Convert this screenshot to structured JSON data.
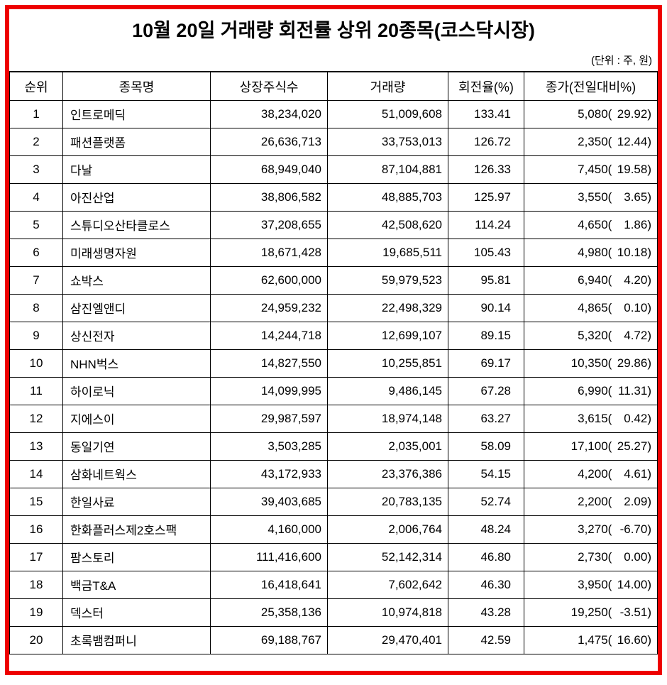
{
  "frame_color": "#ee0000",
  "chart_data": {
    "type": "table",
    "title": "10월 20일 거래량 회전률 상위 20종목(코스닥시장)",
    "unit_note": "(단위 : 주, 원)",
    "columns": [
      "순위",
      "종목명",
      "상장주식수",
      "거래량",
      "회전율(%)",
      "종가(전일대비%)"
    ],
    "rows": [
      {
        "rank": "1",
        "name": "인트로메딕",
        "shares": "38,234,020",
        "volume": "51,009,608",
        "turnover": "133.41",
        "close": "5,080",
        "change_pct": "29.92"
      },
      {
        "rank": "2",
        "name": "패션플랫폼",
        "shares": "26,636,713",
        "volume": "33,753,013",
        "turnover": "126.72",
        "close": "2,350",
        "change_pct": "12.44"
      },
      {
        "rank": "3",
        "name": "다날",
        "shares": "68,949,040",
        "volume": "87,104,881",
        "turnover": "126.33",
        "close": "7,450",
        "change_pct": "19.58"
      },
      {
        "rank": "4",
        "name": "아진산업",
        "shares": "38,806,582",
        "volume": "48,885,703",
        "turnover": "125.97",
        "close": "3,550",
        "change_pct": "3.65"
      },
      {
        "rank": "5",
        "name": "스튜디오산타클로스",
        "shares": "37,208,655",
        "volume": "42,508,620",
        "turnover": "114.24",
        "close": "4,650",
        "change_pct": "1.86"
      },
      {
        "rank": "6",
        "name": "미래생명자원",
        "shares": "18,671,428",
        "volume": "19,685,511",
        "turnover": "105.43",
        "close": "4,980",
        "change_pct": "10.18"
      },
      {
        "rank": "7",
        "name": "쇼박스",
        "shares": "62,600,000",
        "volume": "59,979,523",
        "turnover": "95.81",
        "close": "6,940",
        "change_pct": "4.20"
      },
      {
        "rank": "8",
        "name": "삼진엘앤디",
        "shares": "24,959,232",
        "volume": "22,498,329",
        "turnover": "90.14",
        "close": "4,865",
        "change_pct": "0.10"
      },
      {
        "rank": "9",
        "name": "상신전자",
        "shares": "14,244,718",
        "volume": "12,699,107",
        "turnover": "89.15",
        "close": "5,320",
        "change_pct": "4.72"
      },
      {
        "rank": "10",
        "name": "NHN벅스",
        "shares": "14,827,550",
        "volume": "10,255,851",
        "turnover": "69.17",
        "close": "10,350",
        "change_pct": "29.86"
      },
      {
        "rank": "11",
        "name": "하이로닉",
        "shares": "14,099,995",
        "volume": "9,486,145",
        "turnover": "67.28",
        "close": "6,990",
        "change_pct": "11.31"
      },
      {
        "rank": "12",
        "name": "지에스이",
        "shares": "29,987,597",
        "volume": "18,974,148",
        "turnover": "63.27",
        "close": "3,615",
        "change_pct": "0.42"
      },
      {
        "rank": "13",
        "name": "동일기연",
        "shares": "3,503,285",
        "volume": "2,035,001",
        "turnover": "58.09",
        "close": "17,100",
        "change_pct": "25.27"
      },
      {
        "rank": "14",
        "name": "삼화네트웍스",
        "shares": "43,172,933",
        "volume": "23,376,386",
        "turnover": "54.15",
        "close": "4,200",
        "change_pct": "4.61"
      },
      {
        "rank": "15",
        "name": "한일사료",
        "shares": "39,403,685",
        "volume": "20,783,135",
        "turnover": "52.74",
        "close": "2,200",
        "change_pct": "2.09"
      },
      {
        "rank": "16",
        "name": "한화플러스제2호스팩",
        "shares": "4,160,000",
        "volume": "2,006,764",
        "turnover": "48.24",
        "close": "3,270",
        "change_pct": "-6.70"
      },
      {
        "rank": "17",
        "name": "팜스토리",
        "shares": "111,416,600",
        "volume": "52,142,314",
        "turnover": "46.80",
        "close": "2,730",
        "change_pct": "0.00"
      },
      {
        "rank": "18",
        "name": "백금T&A",
        "shares": "16,418,641",
        "volume": "7,602,642",
        "turnover": "46.30",
        "close": "3,950",
        "change_pct": "14.00"
      },
      {
        "rank": "19",
        "name": "덱스터",
        "shares": "25,358,136",
        "volume": "10,974,818",
        "turnover": "43.28",
        "close": "19,250",
        "change_pct": "-3.51"
      },
      {
        "rank": "20",
        "name": "초록뱀컴퍼니",
        "shares": "69,188,767",
        "volume": "29,470,401",
        "turnover": "42.59",
        "close": "1,475",
        "change_pct": "16.60"
      }
    ]
  }
}
